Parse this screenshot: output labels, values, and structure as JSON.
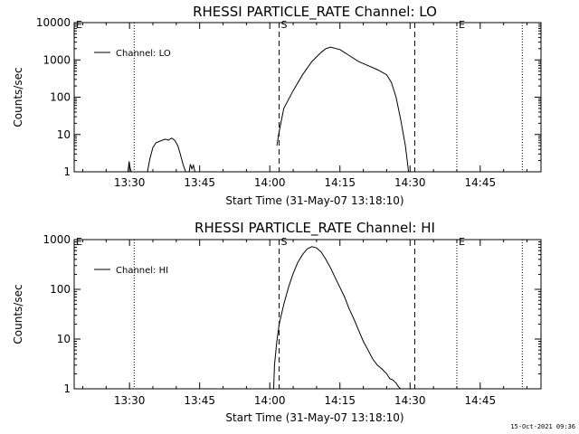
{
  "chart_data": [
    {
      "type": "line",
      "title": "RHESSI PARTICLE_RATE Channel: LO",
      "xlabel": "Start Time (31-May-07 13:18:10)",
      "ylabel": "Counts/sec",
      "y_scale": "log",
      "ylim": [
        1,
        10000
      ],
      "xlim": [
        "13:18:10",
        "14:58:00"
      ],
      "x_ticks": [
        "13:30",
        "13:45",
        "14:00",
        "14:15",
        "14:30",
        "14:45"
      ],
      "y_ticks": [
        "1",
        "10",
        "100",
        "1000",
        "10000"
      ],
      "legend": {
        "position": "top-left",
        "entry": "Channel: LO"
      },
      "markers": {
        "dotted": [
          "13:31",
          "14:40",
          "14:54"
        ],
        "dashed": [
          "14:02",
          "14:31"
        ],
        "labels": [
          {
            "text": "E",
            "at": "13:18:10"
          },
          {
            "text": "S",
            "at": "14:02"
          },
          {
            "text": "E",
            "at": "14:40"
          }
        ]
      },
      "grid": false,
      "series": [
        {
          "segments": [
            {
              "x": [
                "13:29:40",
                "13:29:55",
                "13:30:10",
                "13:30:25"
              ],
              "y": [
                1,
                1.9,
                1.2,
                1
              ]
            },
            {
              "x": [
                "13:33:50",
                "13:34:20",
                "13:35:00",
                "13:35:40",
                "13:36:20",
                "13:37:00",
                "13:37:40",
                "13:38:20",
                "13:39:00",
                "13:39:40",
                "13:40:20",
                "13:40:50",
                "13:41:30",
                "13:42:00"
              ],
              "y": [
                1,
                2.2,
                4.5,
                6,
                6.5,
                7,
                7.5,
                7,
                8,
                7,
                5,
                3,
                1.5,
                1
              ]
            },
            {
              "x": [
                "13:42:45",
                "13:43:00",
                "13:43:20",
                "13:43:40",
                "13:44:00"
              ],
              "y": [
                1,
                1.6,
                1.2,
                1.5,
                1
              ]
            },
            {
              "x": [
                "14:01:30",
                "14:02:00",
                "14:03:00",
                "14:05:00",
                "14:07:00",
                "14:09:00",
                "14:11:00",
                "14:12:00",
                "14:13:00",
                "14:15:00",
                "14:17:00",
                "14:19:00",
                "14:21:00",
                "14:23:00",
                "14:25:00",
                "14:26:00",
                "14:27:00",
                "14:28:00",
                "14:29:00",
                "14:29:40"
              ],
              "y": [
                5,
                12,
                50,
                150,
                400,
                900,
                1600,
                2000,
                2200,
                1900,
                1300,
                900,
                700,
                550,
                400,
                250,
                100,
                25,
                5,
                1
              ]
            }
          ]
        }
      ]
    },
    {
      "type": "line",
      "title": "RHESSI PARTICLE_RATE Channel: HI",
      "xlabel": "Start Time (31-May-07 13:18:10)",
      "ylabel": "Counts/sec",
      "y_scale": "log",
      "ylim": [
        1,
        1000
      ],
      "xlim": [
        "13:18:10",
        "14:58:00"
      ],
      "x_ticks": [
        "13:30",
        "13:45",
        "14:00",
        "14:15",
        "14:30",
        "14:45"
      ],
      "y_ticks": [
        "1",
        "10",
        "100",
        "1000"
      ],
      "legend": {
        "position": "top-left",
        "entry": "Channel: HI"
      },
      "markers": {
        "dotted": [
          "13:31",
          "14:40",
          "14:54"
        ],
        "dashed": [
          "14:02",
          "14:31"
        ],
        "labels": [
          {
            "text": "E",
            "at": "13:18:10"
          },
          {
            "text": "S",
            "at": "14:02"
          },
          {
            "text": "E",
            "at": "14:40"
          }
        ]
      },
      "grid": false,
      "series": [
        {
          "segments": [
            {
              "x": [
                "14:00:50",
                "14:01:00",
                "14:01:30",
                "14:02:00",
                "14:03:00",
                "14:04:00",
                "14:05:00",
                "14:06:00",
                "14:07:00",
                "14:08:00",
                "14:09:00",
                "14:10:00",
                "14:11:00",
                "14:12:00",
                "14:13:00",
                "14:14:00",
                "14:15:00",
                "14:16:00",
                "14:17:00",
                "14:18:00",
                "14:19:00",
                "14:20:00",
                "14:21:00",
                "14:22:00",
                "14:23:00",
                "14:24:00",
                "14:25:00",
                "14:25:40",
                "14:26:20",
                "14:27:00",
                "14:27:30",
                "14:28:00"
              ],
              "y": [
                1,
                3,
                9,
                20,
                50,
                110,
                210,
                350,
                500,
                650,
                720,
                680,
                560,
                400,
                270,
                170,
                110,
                70,
                40,
                25,
                15,
                9,
                6,
                4,
                3,
                2.5,
                2,
                1.6,
                1.5,
                1.3,
                1.1,
                1
              ]
            }
          ]
        }
      ]
    }
  ],
  "footer": {
    "stamp": "15-Oct-2021 09:36"
  }
}
